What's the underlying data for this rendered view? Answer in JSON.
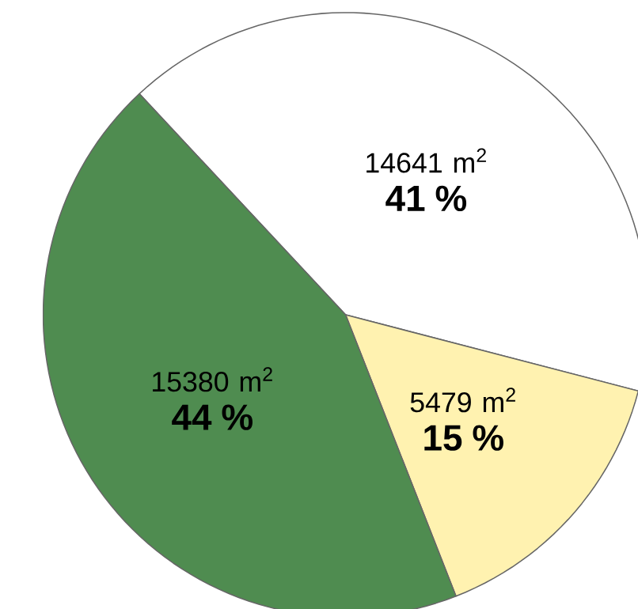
{
  "chart_data": {
    "type": "pie",
    "categories": [
      null,
      null,
      null
    ],
    "values": [
      41,
      15,
      44
    ],
    "value_labels": [
      "14641 m$^{2}$ **41 %**",
      "5479 m$^{2}$ **15 %**",
      "15380 m$^{2}$ **44 %**"
    ],
    "colors": [
      "#ffffff",
      "#fff2b0",
      "#4f8c50"
    ]
  }
}
